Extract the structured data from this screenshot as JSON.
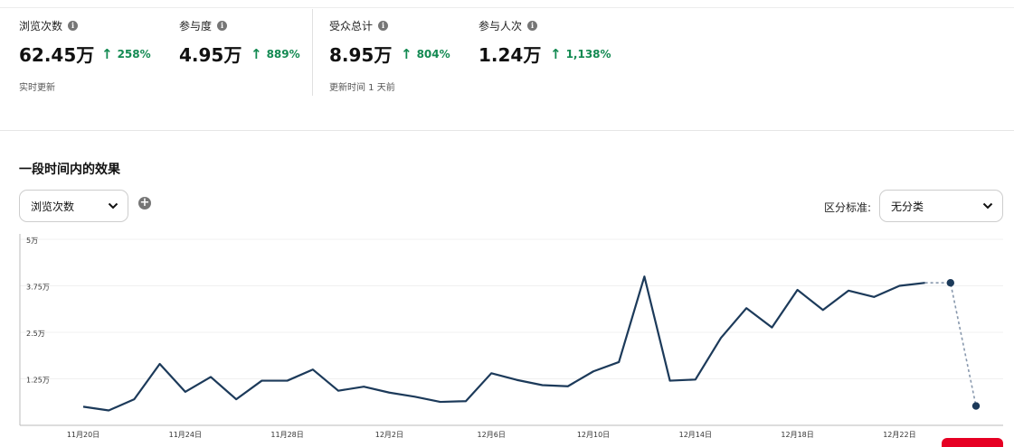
{
  "metrics": [
    {
      "label": "浏览次数",
      "value": "62.45万",
      "change": "258%"
    },
    {
      "label": "参与度",
      "value": "4.95万",
      "change": "889%"
    },
    {
      "label": "受众总计",
      "value": "8.95万",
      "change": "804%"
    },
    {
      "label": "参与人次",
      "value": "1.24万",
      "change": "1,138%"
    }
  ],
  "notes": {
    "realtime": "实时更新",
    "updated": "更新时间 1 天前"
  },
  "section": {
    "title": "一段时间内的效果"
  },
  "controls": {
    "metric_select": "浏览次数",
    "split_label": "区分标准:",
    "split_select": "无分类"
  },
  "colors": {
    "line": "#1c3a5a",
    "positive": "#138a52",
    "accent": "#e60023"
  },
  "chart_data": {
    "type": "line",
    "ylim": [
      0,
      50000
    ],
    "y_ticks": [
      {
        "value": 50000,
        "label": "5万"
      },
      {
        "value": 37500,
        "label": "3.75万"
      },
      {
        "value": 25000,
        "label": "2.5万"
      },
      {
        "value": 12500,
        "label": "1.25万"
      }
    ],
    "x_ticks": [
      "11月20日",
      "11月24日",
      "11月28日",
      "12月2日",
      "12月6日",
      "12月10日",
      "12月14日",
      "12月18日",
      "12月22日"
    ],
    "series": [
      {
        "dates": [
          "11月20日",
          "11月21日",
          "11月22日",
          "11月23日",
          "11月24日",
          "11月25日",
          "11月26日",
          "11月27日",
          "11月28日",
          "11月29日",
          "11月30日",
          "12月1日",
          "12月2日",
          "12月3日",
          "12月4日",
          "12月5日",
          "12月6日",
          "12月7日",
          "12月8日",
          "12月9日",
          "12月10日",
          "12月11日",
          "12月12日",
          "12月13日",
          "12月14日",
          "12月15日",
          "12月16日",
          "12月17日",
          "12月18日",
          "12月19日",
          "12月20日",
          "12月21日",
          "12月22日",
          "12月23日"
        ],
        "values": [
          5000,
          4000,
          7000,
          16500,
          9000,
          13000,
          7000,
          12000,
          12000,
          15000,
          9300,
          10400,
          8800,
          7700,
          6300,
          6500,
          14000,
          12200,
          10800,
          10500,
          14500,
          17000,
          40000,
          12000,
          12300,
          23500,
          31500,
          26300,
          36400,
          31000,
          36200,
          34500,
          37500,
          38300
        ]
      }
    ],
    "projected": [
      {
        "date": "12月24日",
        "value": 38300
      },
      {
        "date": "12月25日",
        "value": 5200
      }
    ]
  }
}
